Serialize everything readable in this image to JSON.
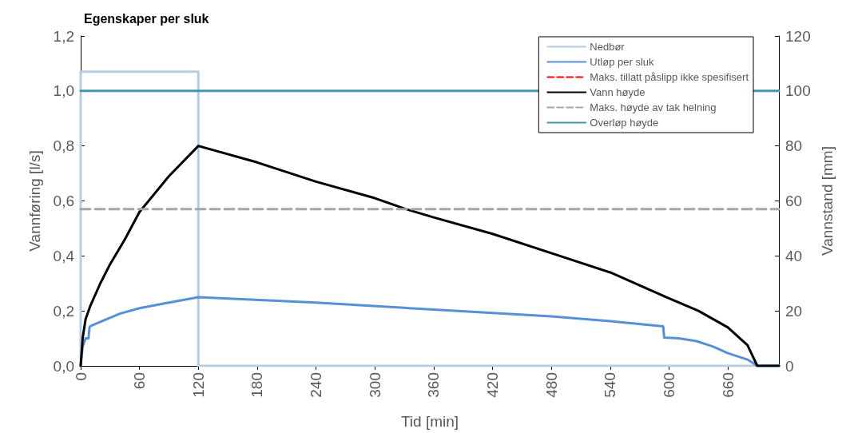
{
  "chart_data": {
    "type": "line",
    "title": "Egenskaper per sluk",
    "xlabel": "Tid [min]",
    "ylabel": "Vannføring [l/s]",
    "y2label": "Vannstand [mm]",
    "xlim": [
      0,
      712
    ],
    "xticks": [
      0,
      60,
      120,
      180,
      240,
      300,
      360,
      420,
      480,
      540,
      600,
      660
    ],
    "ylim": [
      0,
      1.2
    ],
    "yticks": [
      {
        "value": 0,
        "label": "0,0"
      },
      {
        "value": 0.2,
        "label": "0,2"
      },
      {
        "value": 0.4,
        "label": "0,4"
      },
      {
        "value": 0.6,
        "label": "0,6"
      },
      {
        "value": 0.8,
        "label": "0,8"
      },
      {
        "value": 1,
        "label": "1,0"
      },
      {
        "value": 1.2,
        "label": "1,2"
      }
    ],
    "y2lim": [
      0,
      120
    ],
    "y2ticks": [
      0,
      20,
      40,
      60,
      80,
      100,
      120
    ],
    "grid": false,
    "legend": "top right",
    "marker": "none",
    "series": [
      {
        "name": "Nedbør",
        "color": "#b4cde6",
        "x": [
          0,
          0,
          120,
          120,
          712
        ],
        "values": [
          0,
          1.07,
          1.07,
          0,
          0
        ]
      },
      {
        "name": "Utløp per sluk",
        "color": "#5590d8",
        "x": [
          0,
          2,
          5,
          8,
          9,
          10,
          20,
          40,
          60,
          90,
          120,
          240,
          360,
          480,
          540,
          594,
          595,
          610,
          628,
          645,
          660,
          680,
          690,
          712
        ],
        "values": [
          0,
          0.07,
          0.1,
          0.1,
          0.14,
          0.145,
          0.16,
          0.19,
          0.21,
          0.23,
          0.25,
          0.23,
          0.205,
          0.18,
          0.163,
          0.144,
          0.103,
          0.1,
          0.09,
          0.07,
          0.046,
          0.023,
          0,
          0
        ]
      },
      {
        "name": "Maks. tillatt påslipp ikke spesifisert",
        "color": "#ff0000",
        "line_style": "dashed"
      },
      {
        "name": "Vann høyde",
        "color": "#000000",
        "axis": "y2",
        "x": [
          0,
          2,
          5,
          10,
          20,
          30,
          45,
          60,
          90,
          120,
          180,
          240,
          300,
          332,
          360,
          420,
          480,
          540,
          597,
          630,
          660,
          680,
          690,
          712
        ],
        "values": [
          0,
          10,
          17,
          22,
          30,
          37,
          46,
          56,
          69,
          80,
          74,
          67,
          61,
          57,
          54,
          48,
          41,
          34,
          25,
          20,
          14,
          7.5,
          0,
          0
        ]
      },
      {
        "name": "Maks. høyde av tak helning",
        "color": "#a6a6a6",
        "line_style": "dashed",
        "axis": "y2",
        "x": [
          0,
          712
        ],
        "values": [
          57,
          57
        ]
      },
      {
        "name": "Overløp høyde",
        "color": "#4198ae",
        "axis": "y2",
        "x": [
          0,
          712
        ],
        "values": [
          100,
          100
        ]
      }
    ]
  }
}
